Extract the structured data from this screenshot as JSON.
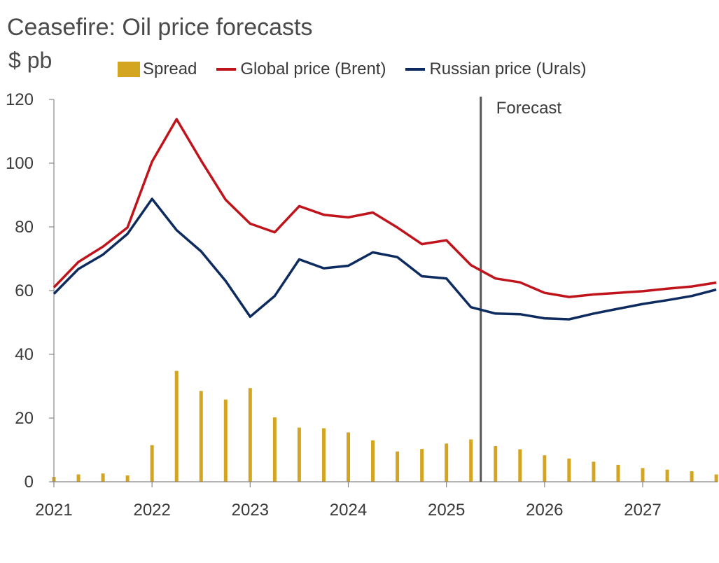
{
  "title": "Ceasefire: Oil price forecasts",
  "unit": "$ pb",
  "annotation": "Forecast",
  "colors": {
    "spread": "#D4A520",
    "brent": "#C0141C",
    "urals": "#0D2B5E",
    "divider": "#555555",
    "axis": "#888888"
  },
  "chart_data": {
    "type": "line",
    "title": "Ceasefire: Oil price forecasts",
    "ylabel": "$ pb",
    "xlabel": "",
    "ylim": [
      0,
      120
    ],
    "yticks": [
      0,
      20,
      40,
      60,
      80,
      100,
      120
    ],
    "xlim": [
      2021,
      2027.75
    ],
    "xticks": [
      "2021",
      "2022",
      "2023",
      "2024",
      "2025",
      "2026",
      "2027"
    ],
    "grid": false,
    "legend_position": "top",
    "forecast_start": 2025.35,
    "x": [
      2021.0,
      2021.25,
      2021.5,
      2021.75,
      2022.0,
      2022.25,
      2022.5,
      2022.75,
      2023.0,
      2023.25,
      2023.5,
      2023.75,
      2024.0,
      2024.25,
      2024.5,
      2024.75,
      2025.0,
      2025.25,
      2025.5,
      2025.75,
      2026.0,
      2026.25,
      2026.5,
      2026.75,
      2027.0,
      2027.25,
      2027.5,
      2027.75
    ],
    "series": [
      {
        "name": "Spread",
        "kind": "bar",
        "values": [
          1.5,
          2.3,
          2.6,
          2.0,
          11.5,
          34.8,
          28.5,
          25.8,
          29.4,
          20.2,
          17.0,
          16.8,
          15.5,
          13.0,
          9.5,
          10.3,
          12.0,
          13.3,
          11.2,
          10.2,
          8.3,
          7.3,
          6.3,
          5.3,
          4.3,
          3.8,
          3.3,
          2.3
        ]
      },
      {
        "name": "Global price (Brent)",
        "kind": "line",
        "values": [
          61.0,
          69.0,
          73.8,
          79.8,
          100.5,
          113.8,
          100.8,
          88.5,
          81.0,
          78.3,
          86.5,
          83.8,
          83.0,
          84.5,
          79.8,
          74.6,
          75.8,
          68.0,
          63.8,
          62.6,
          59.3,
          58.0,
          58.8,
          59.3,
          59.8,
          60.6,
          61.3,
          62.5
        ]
      },
      {
        "name": "Russian price (Urals)",
        "kind": "line",
        "values": [
          59.0,
          66.8,
          71.3,
          77.8,
          88.8,
          79.0,
          72.3,
          63.0,
          51.8,
          58.3,
          69.8,
          67.0,
          67.8,
          72.0,
          70.5,
          64.5,
          63.8,
          54.8,
          52.8,
          52.6,
          51.3,
          51.0,
          52.8,
          54.3,
          55.8,
          57.0,
          58.3,
          60.3
        ]
      }
    ]
  }
}
